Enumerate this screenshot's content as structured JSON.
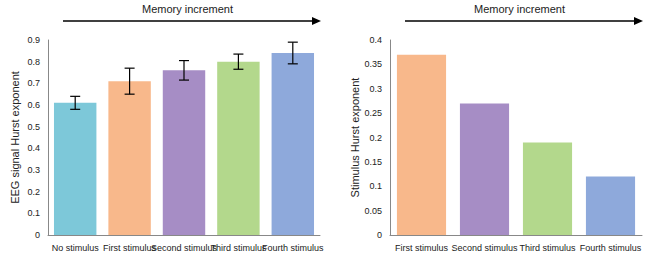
{
  "chart_data": [
    {
      "type": "bar",
      "annotation": "Memory increment",
      "ylabel": "EEG signal Hurst exponent",
      "categories": [
        "No stimulus",
        "First stimulus",
        "Second stimulus",
        "Third stimulus",
        "Fourth stimulus"
      ],
      "values": [
        0.61,
        0.71,
        0.76,
        0.8,
        0.84
      ],
      "errors": [
        0.03,
        0.06,
        0.045,
        0.035,
        0.05
      ],
      "colors": [
        "#7dc8d9",
        "#f8b88b",
        "#a68dc5",
        "#b3d88c",
        "#8ea9db"
      ],
      "ylim": [
        0,
        0.9
      ],
      "yticks": [
        0,
        0.1,
        0.2,
        0.3,
        0.4,
        0.5,
        0.6,
        0.7,
        0.8,
        0.9
      ],
      "grid": false
    },
    {
      "type": "bar",
      "annotation": "Memory increment",
      "ylabel": "Stimulus Hurst exponent",
      "categories": [
        "First stimulus",
        "Second stimulus",
        "Third stimulus",
        "Fourth stimulus"
      ],
      "values": [
        0.37,
        0.27,
        0.19,
        0.12
      ],
      "colors": [
        "#f8b88b",
        "#a68dc5",
        "#b3d88c",
        "#8ea9db"
      ],
      "ylim": [
        0,
        0.4
      ],
      "yticks": [
        0,
        0.05,
        0.1,
        0.15,
        0.2,
        0.25,
        0.3,
        0.35,
        0.4
      ],
      "grid": false
    }
  ]
}
